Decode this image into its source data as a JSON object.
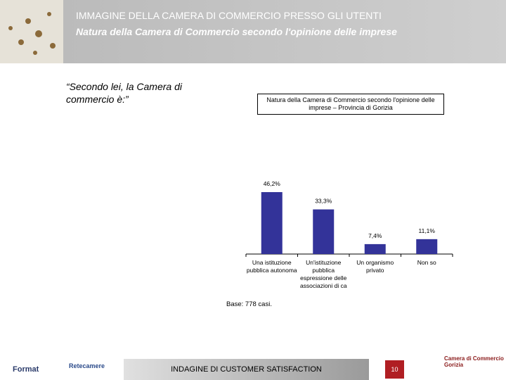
{
  "header": {
    "title": "IMMAGINE DELLA CAMERA DI COMMERCIO PRESSO GLI UTENTI",
    "subtitle": "Natura della Camera di Commercio secondo l'opinione delle imprese"
  },
  "question": "“Secondo lei, la Camera di commercio è:”",
  "chart_data": {
    "type": "bar",
    "title": "Natura della Camera di Commercio secondo l'opinione delle imprese – Provincia di Gorizia",
    "categories": [
      "Una istituzione pubblica autonoma",
      "Un'istituzione pubblica espressione delle associazioni di ca",
      "Un organismo privato",
      "Non so"
    ],
    "values": [
      46.2,
      33.3,
      7.4,
      11.1
    ],
    "value_labels": [
      "46,2%",
      "33,3%",
      "7,4%",
      "11,1%"
    ],
    "color": "#333399"
  },
  "note": "Base: 778 casi.",
  "footer": {
    "left_logo": "Format",
    "center_logo": "Retecamere",
    "label": "INDAGINE DI CUSTOMER SATISFACTION",
    "page": "10",
    "right_logo": "Camera di Commercio Gorizia"
  }
}
